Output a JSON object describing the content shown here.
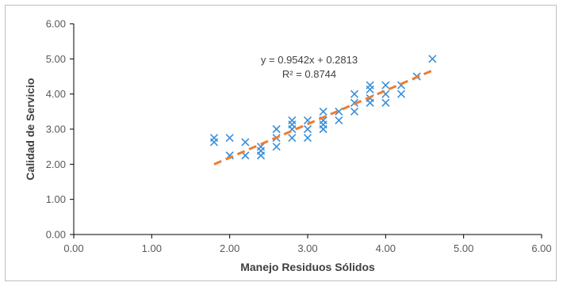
{
  "chart_data": {
    "type": "scatter",
    "title": "",
    "xlabel": "Manejo Residuos Sólidos",
    "ylabel": "Calidad de Servicio",
    "xlim": [
      0,
      6
    ],
    "ylim": [
      0,
      6
    ],
    "x_ticks": [
      "0.00",
      "1.00",
      "2.00",
      "3.00",
      "4.00",
      "5.00",
      "6.00"
    ],
    "y_ticks": [
      "0.00",
      "1.00",
      "2.00",
      "3.00",
      "4.00",
      "5.00",
      "6.00"
    ],
    "grid": false,
    "legend": "none",
    "marker_color": "#3a8fd9",
    "trendline_color": "#ed7d31",
    "series": [
      {
        "points": [
          [
            1.8,
            2.75
          ],
          [
            1.8,
            2.63
          ],
          [
            2.0,
            2.75
          ],
          [
            2.0,
            2.25
          ],
          [
            2.2,
            2.63
          ],
          [
            2.2,
            2.25
          ],
          [
            2.4,
            2.5
          ],
          [
            2.4,
            2.38
          ],
          [
            2.4,
            2.25
          ],
          [
            2.6,
            3.0
          ],
          [
            2.6,
            2.75
          ],
          [
            2.6,
            2.5
          ],
          [
            2.8,
            3.25
          ],
          [
            2.8,
            3.13
          ],
          [
            2.8,
            3.0
          ],
          [
            2.8,
            2.75
          ],
          [
            3.0,
            3.25
          ],
          [
            3.0,
            3.0
          ],
          [
            3.0,
            2.75
          ],
          [
            3.2,
            3.5
          ],
          [
            3.2,
            3.25
          ],
          [
            3.2,
            3.13
          ],
          [
            3.2,
            3.0
          ],
          [
            3.4,
            3.5
          ],
          [
            3.4,
            3.25
          ],
          [
            3.6,
            4.0
          ],
          [
            3.6,
            3.75
          ],
          [
            3.6,
            3.5
          ],
          [
            3.8,
            4.25
          ],
          [
            3.8,
            4.13
          ],
          [
            3.8,
            3.88
          ],
          [
            3.8,
            3.75
          ],
          [
            4.0,
            4.25
          ],
          [
            4.0,
            4.0
          ],
          [
            4.0,
            3.75
          ],
          [
            4.2,
            4.25
          ],
          [
            4.2,
            4.0
          ],
          [
            4.4,
            4.5
          ],
          [
            4.6,
            5.0
          ]
        ]
      }
    ],
    "trendline": {
      "slope": 0.9542,
      "intercept": 0.2813,
      "x_range": [
        1.8,
        4.6
      ],
      "equation": "y = 0.9542x + 0.2813",
      "r_squared": "R² = 0.8744"
    }
  }
}
